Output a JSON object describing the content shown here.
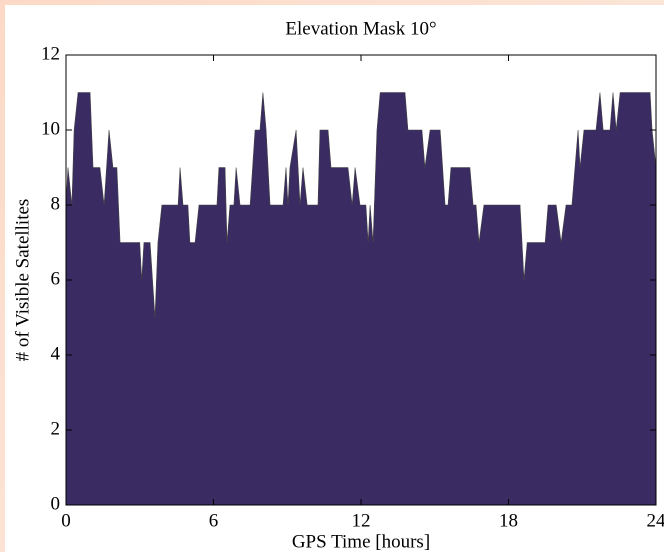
{
  "chart_data": {
    "type": "area",
    "title": "Elevation Mask 10°",
    "xlabel": "GPS Time [hours]",
    "ylabel": "# of Visible Satellites",
    "color": "#3a2b63",
    "x": [
      0,
      0.08,
      0.24,
      0.33,
      0.49,
      0.98,
      1.1,
      1.38,
      1.55,
      1.75,
      1.91,
      2.07,
      2.2,
      3.0,
      3.08,
      3.17,
      3.42,
      3.62,
      3.74,
      3.9,
      4.56,
      4.64,
      4.76,
      4.96,
      5.04,
      5.25,
      5.41,
      6.14,
      6.22,
      6.47,
      6.55,
      6.67,
      6.83,
      6.92,
      7.08,
      7.49,
      7.69,
      7.89,
      8.01,
      8.14,
      8.3,
      8.83,
      8.95,
      9.03,
      9.11,
      9.36,
      9.52,
      9.64,
      9.81,
      10.25,
      10.33,
      10.66,
      10.78,
      11.47,
      11.64,
      11.76,
      11.96,
      12.2,
      12.29,
      12.37,
      12.49,
      12.65,
      12.78,
      13.79,
      13.91,
      14.48,
      14.6,
      14.81,
      15.22,
      15.42,
      15.54,
      15.66,
      16.43,
      16.56,
      16.68,
      16.8,
      17.0,
      18.47,
      18.63,
      18.76,
      19.49,
      19.61,
      19.94,
      20.14,
      20.34,
      20.58,
      20.83,
      20.91,
      21.07,
      21.56,
      21.72,
      21.85,
      22.13,
      22.25,
      22.38,
      22.54,
      23.76,
      23.84,
      24
    ],
    "values": [
      8,
      9,
      8,
      10,
      11,
      11,
      9,
      9,
      8,
      10,
      9,
      9,
      7,
      7,
      6,
      7,
      7,
      5,
      7,
      8,
      8,
      9,
      8,
      8,
      7,
      7,
      8,
      8,
      9,
      9,
      7,
      8,
      8,
      9,
      8,
      8,
      10,
      10,
      11,
      10,
      8,
      8,
      9,
      8,
      9,
      10,
      8,
      9,
      8,
      8,
      10,
      10,
      9,
      9,
      8,
      9,
      8,
      8,
      7,
      8,
      7,
      10,
      11,
      11,
      10,
      10,
      9,
      10,
      10,
      8,
      8,
      9,
      9,
      8,
      8,
      7,
      8,
      8,
      6,
      7,
      7,
      8,
      8,
      7,
      8,
      8,
      10,
      9,
      10,
      10,
      11,
      10,
      10,
      11,
      10,
      11,
      11,
      10,
      9
    ],
    "xlim": [
      0,
      24
    ],
    "xticks": [
      0,
      6,
      12,
      18,
      24
    ],
    "ylim": [
      0,
      12
    ],
    "yticks": [
      0,
      2,
      4,
      6,
      8,
      10,
      12
    ]
  }
}
